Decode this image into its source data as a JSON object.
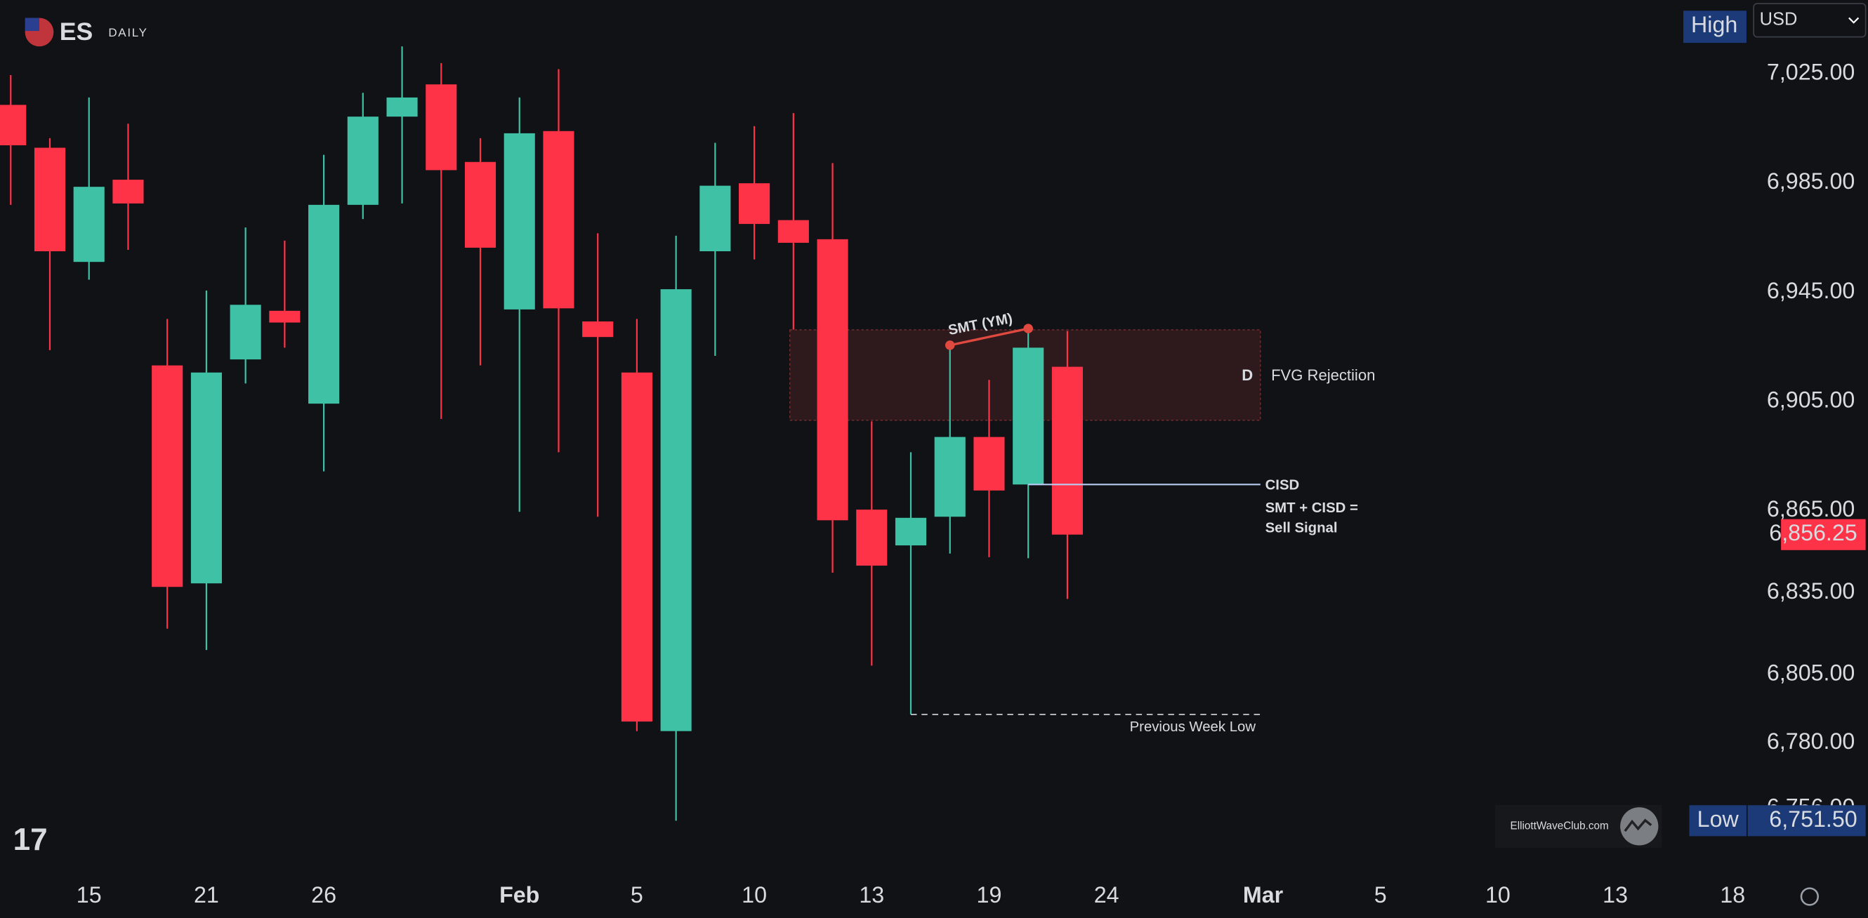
{
  "chart_data": {
    "type": "candlestick",
    "title": "ES",
    "subtitle": "DAILY",
    "categories": [
      null,
      null,
      "15",
      null,
      null,
      "21",
      null,
      null,
      "26",
      null,
      null,
      null,
      null,
      "Feb",
      null,
      null,
      "5",
      null,
      null,
      "10",
      null,
      null,
      "13",
      null,
      null,
      "19",
      null,
      null,
      "24",
      null,
      null,
      null,
      "Mar",
      null,
      null,
      "5",
      null,
      null,
      "10",
      null,
      null,
      "13",
      null,
      null,
      "18"
    ],
    "open": [
      7013.6,
      6997.9,
      6956.1,
      6986.2,
      6918.2,
      6838.4,
      6920.4,
      6938.2,
      6904.2,
      6977.0,
      7009.3,
      7021.1,
      6992.7,
      6938.7,
      7004.0,
      6934.3,
      6915.6,
      6784.3,
      6960.0,
      6984.9,
      6971.4,
      6964.4,
      6865.4,
      6852.3,
      6862.8,
      6892.0,
      6874.6,
      6917.7,
      null,
      null,
      null,
      null,
      null,
      null,
      null,
      null,
      null,
      null,
      null,
      null,
      null,
      null,
      null,
      null,
      null
    ],
    "high": [
      7024.5,
      7001.4,
      7016.3,
      7006.7,
      6935.2,
      6945.6,
      6968.7,
      6963.9,
      6995.3,
      7018.0,
      7035.0,
      7028.9,
      7001.4,
      7016.3,
      7026.7,
      6966.6,
      6935.2,
      6965.7,
      6999.7,
      7005.8,
      7010.6,
      6992.3,
      6897.7,
      6886.4,
      6925.6,
      6912.9,
      6931.7,
      6930.8,
      null,
      null,
      null,
      null,
      null,
      null,
      null,
      null,
      null,
      null,
      null,
      null,
      null,
      null,
      null,
      null,
      null
    ],
    "low": [
      6977.0,
      6923.8,
      6949.6,
      6960.5,
      6821.8,
      6814.0,
      6911.6,
      6924.7,
      6879.4,
      6971.8,
      6977.5,
      6898.6,
      6918.2,
      6864.6,
      6886.4,
      6862.8,
      6784.3,
      6751.5,
      6921.7,
      6957.0,
      6931.3,
      6842.3,
      6808.3,
      6790.4,
      6849.3,
      6848.0,
      6847.6,
      6832.7,
      null,
      null,
      null,
      null,
      null,
      null,
      null,
      null,
      null,
      null,
      null,
      null,
      null,
      null,
      null,
      null,
      null
    ],
    "close": [
      6998.8,
      6960.0,
      6983.6,
      6977.5,
      6837.1,
      6915.6,
      6940.4,
      6933.9,
      6977.0,
      7009.3,
      7016.3,
      6989.7,
      6961.3,
      7003.2,
      6939.1,
      6928.6,
      6787.8,
      6946.1,
      6984.0,
      6970.0,
      6963.1,
      6861.5,
      6844.9,
      6862.4,
      6892.0,
      6872.4,
      6924.7,
      6856.25,
      null,
      null,
      null,
      null,
      null,
      null,
      null,
      null,
      null,
      null,
      null,
      null,
      null,
      null,
      null,
      null,
      null
    ],
    "up_color": "#3fc1a6",
    "down_color": "#ff3347",
    "ylim": [
      6732,
      7052
    ],
    "yticks": [
      {
        "value": 7025,
        "label": "7,025.00"
      },
      {
        "value": 6985,
        "label": "6,985.00"
      },
      {
        "value": 6945,
        "label": "6,945.00"
      },
      {
        "value": 6905,
        "label": "6,905.00"
      },
      {
        "value": 6865,
        "label": "6,865.00"
      },
      {
        "value": 6835,
        "label": "6,835.00"
      },
      {
        "value": 6805,
        "label": "6,805.00"
      },
      {
        "value": 6780,
        "label": "6,780.00"
      },
      {
        "value": 6756,
        "label": "6,756.00"
      }
    ],
    "last_price_label": "6,856.25",
    "annotations": {
      "smt": "SMT (YM)",
      "zone_tag": "D",
      "zone": "FVG Rejectiion",
      "cisd": "CISD",
      "signal_1": "SMT + CISD =",
      "signal_2": "Sell Signal",
      "pwl": "Previous Week Low"
    }
  },
  "ui": {
    "currency": "USD",
    "high": "High",
    "low": "Low",
    "low_value": "6,751.50",
    "watermark": "ElliottWaveClub.com"
  }
}
